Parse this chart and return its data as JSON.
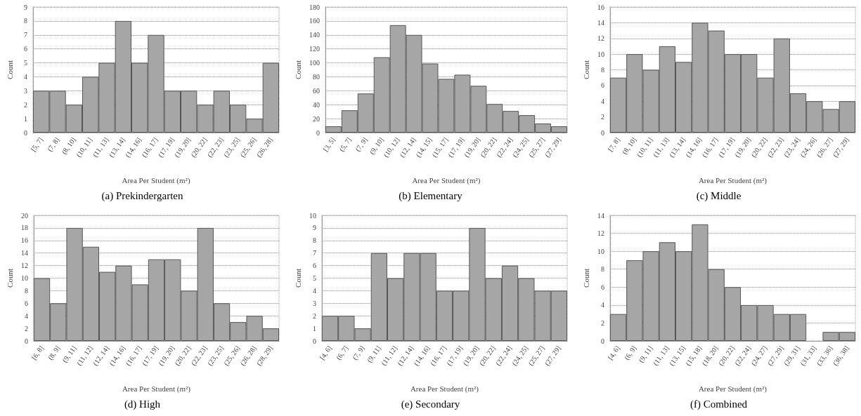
{
  "chart_data": [
    {
      "type": "bar",
      "title": "(a) Prekindergarten",
      "xlabel": "Area Per Student (m²)",
      "ylabel": "Count",
      "color": "#a6a6a6",
      "grid": "y",
      "ylim": [
        0,
        9
      ],
      "yticks": [
        0,
        1,
        2,
        3,
        4,
        5,
        6,
        7,
        8,
        9
      ],
      "categories": [
        "[5, 7]",
        "(7, 8]",
        "(8, 10]",
        "(10, 11]",
        "(11, 13]",
        "(13, 14]",
        "(14, 16]",
        "(16, 17]",
        "(17, 19]",
        "(19, 20]",
        "(20, 22]",
        "(22, 23]",
        "(23, 25]",
        "(25, 26]",
        "(26, 28]"
      ],
      "values": [
        3,
        3,
        2,
        4,
        5,
        8,
        5,
        7,
        3,
        3,
        2,
        3,
        2,
        1,
        5
      ]
    },
    {
      "type": "bar",
      "title": "(b) Elementary",
      "xlabel": "Area Per Student (m²)",
      "ylabel": "Count",
      "color": "#a6a6a6",
      "grid": "y",
      "ylim": [
        0,
        180
      ],
      "yticks": [
        0,
        20,
        40,
        60,
        80,
        100,
        120,
        140,
        160,
        180
      ],
      "categories": [
        "[3, 5]",
        "(5, 7]",
        "(7, 9]",
        "(9, 10]",
        "(10, 12]",
        "(12, 14]",
        "(14, 15]",
        "(15, 17]",
        "(17, 19]",
        "(19, 20]",
        "(20, 22]",
        "(22, 24]",
        "(24, 25]",
        "(25, 27]",
        "(27, 29]"
      ],
      "values": [
        9,
        32,
        56,
        108,
        154,
        140,
        99,
        77,
        83,
        67,
        41,
        31,
        25,
        13,
        9
      ]
    },
    {
      "type": "bar",
      "title": "(c) Middle",
      "xlabel": "Area Per Student (m²)",
      "ylabel": "Count",
      "color": "#a6a6a6",
      "grid": "y",
      "ylim": [
        0,
        16
      ],
      "yticks": [
        0,
        2,
        4,
        6,
        8,
        10,
        12,
        14,
        16
      ],
      "categories": [
        "[7, 8]",
        "(8, 10]",
        "(10, 11]",
        "(11, 13]",
        "(13, 14]",
        "(14, 16]",
        "(16, 17]",
        "(17, 19]",
        "(19, 20]",
        "(20, 22]",
        "(22, 23]",
        "(23, 24]",
        "(24, 26]",
        "(26, 27]",
        "(27, 29]"
      ],
      "values": [
        7,
        10,
        8,
        11,
        9,
        14,
        13,
        10,
        10,
        7,
        12,
        5,
        4,
        3,
        4
      ]
    },
    {
      "type": "bar",
      "title": "(d) High",
      "xlabel": "Area Per Student (m²)",
      "ylabel": "Count",
      "color": "#a6a6a6",
      "grid": "y",
      "ylim": [
        0,
        20
      ],
      "yticks": [
        0,
        2,
        4,
        6,
        8,
        10,
        12,
        14,
        16,
        18,
        20
      ],
      "categories": [
        "[6, 8]",
        "(8, 9]",
        "(9, 11]",
        "(11, 12]",
        "(12, 14]",
        "(14, 16]",
        "(16, 17]",
        "(17, 19]",
        "(19, 20]",
        "(20, 22]",
        "(22, 23]",
        "(23, 25]",
        "(25, 26]",
        "(26, 28]",
        "(28, 29]"
      ],
      "values": [
        10,
        6,
        18,
        15,
        11,
        12,
        9,
        13,
        13,
        8,
        18,
        6,
        3,
        4,
        2
      ]
    },
    {
      "type": "bar",
      "title": "(e) Secondary",
      "xlabel": "Area Per Student (m²)",
      "ylabel": "Count",
      "color": "#a6a6a6",
      "grid": "y",
      "ylim": [
        0,
        10
      ],
      "yticks": [
        0,
        1,
        2,
        3,
        4,
        5,
        6,
        7,
        8,
        9,
        10
      ],
      "categories": [
        "[4, 6]",
        "(6, 7]",
        "(7, 9]",
        "(9, 11]",
        "(11, 12]",
        "(12, 14]",
        "(14, 16]",
        "(16, 17]",
        "(17, 19]",
        "(19, 20]",
        "(20, 22]",
        "(22, 24]",
        "(24, 25]",
        "(25, 27]",
        "(27, 29]"
      ],
      "values": [
        2,
        2,
        1,
        7,
        5,
        7,
        7,
        4,
        4,
        9,
        5,
        6,
        5,
        4,
        4
      ]
    },
    {
      "type": "bar",
      "title": "(f) Combined",
      "xlabel": "Area Per Student (m²)",
      "ylabel": "Count",
      "color": "#a6a6a6",
      "grid": "y",
      "ylim": [
        0,
        14
      ],
      "yticks": [
        0,
        2,
        4,
        6,
        8,
        10,
        12,
        14
      ],
      "categories": [
        "[4, 6]",
        "(6, 9]",
        "(9, 11]",
        "(11, 13]",
        "(13, 15]",
        "(15, 18]",
        "(18, 20]",
        "(20, 22]",
        "(22, 24]",
        "(24, 27]",
        "(27, 29]",
        "(29, 31]",
        "(31, 33]",
        "(33, 36]",
        "(36, 38]"
      ],
      "values": [
        3,
        9,
        10,
        11,
        10,
        13,
        8,
        6,
        4,
        4,
        3,
        3,
        0,
        1,
        1
      ]
    }
  ]
}
